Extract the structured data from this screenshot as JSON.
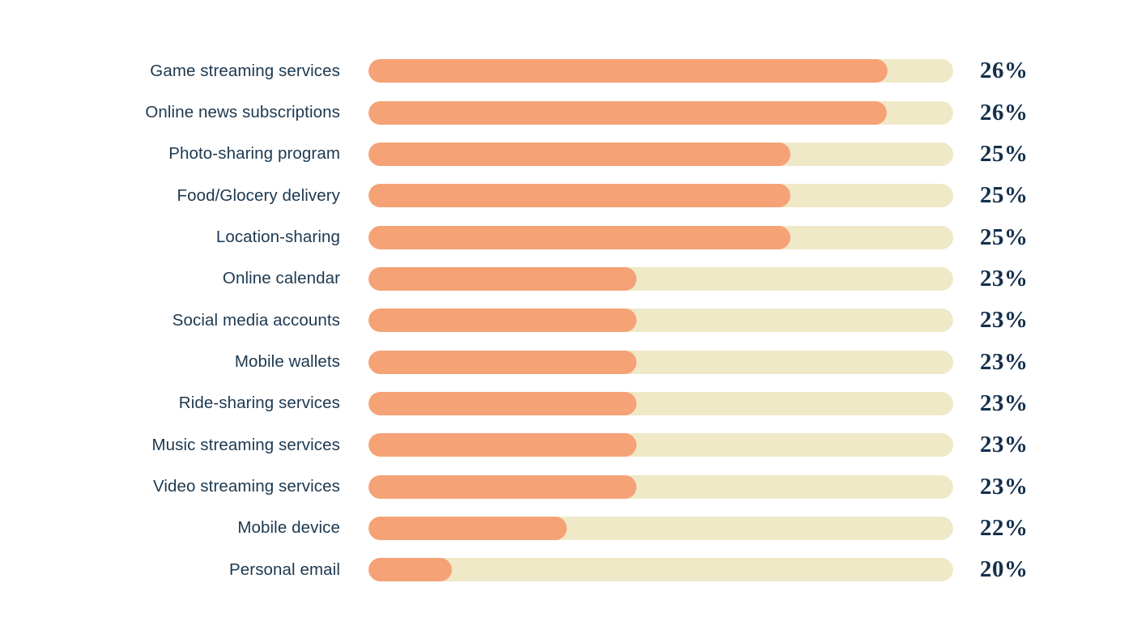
{
  "chart_data": {
    "type": "bar",
    "orientation": "horizontal",
    "title": "",
    "xlabel": "",
    "ylabel": "",
    "grid": false,
    "legend": false,
    "categories": [
      "Game streaming services",
      "Online news subscriptions",
      "Photo-sharing program",
      "Food/Glocery delivery",
      "Location-sharing",
      "Online calendar",
      "Social media accounts",
      "Mobile wallets",
      "Ride-sharing services",
      "Music streaming services",
      "Video streaming services",
      "Mobile device",
      "Personal email"
    ],
    "values": [
      26,
      26,
      25,
      25,
      25,
      23,
      23,
      23,
      23,
      23,
      23,
      22,
      20
    ],
    "value_labels": [
      "26%",
      "26%",
      "25%",
      "25%",
      "25%",
      "23%",
      "23%",
      "23%",
      "23%",
      "23%",
      "23%",
      "22%",
      "20%"
    ],
    "bar_fill_fractions": [
      0.888,
      0.886,
      0.722,
      0.722,
      0.722,
      0.458,
      0.458,
      0.458,
      0.459,
      0.459,
      0.459,
      0.339,
      0.142
    ],
    "colors": {
      "bar_fill": "#f5a276",
      "bar_track": "#efe9c8",
      "label_text": "#1c3850",
      "value_text": "#132f4b",
      "background": "#ffffff"
    }
  }
}
